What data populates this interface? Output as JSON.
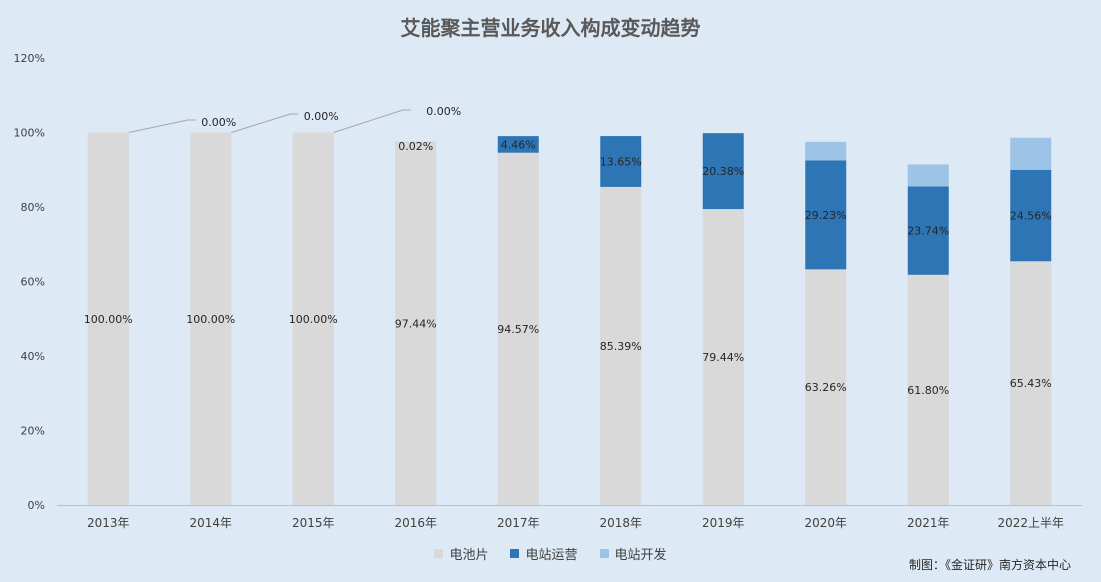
{
  "title": "艾能聚主营业务收入构成变动趋势",
  "source": "制图：《金证研》南方资本中心",
  "colors": {
    "battery": "#d9d9d9",
    "operation": "#2e75b6",
    "development": "#9dc3e6",
    "axis": "#bfbfbf",
    "leader": "#a6a6a6"
  },
  "chart_data": {
    "type": "bar",
    "stacked": true,
    "categories": [
      "2013年",
      "2014年",
      "2015年",
      "2016年",
      "2017年",
      "2018年",
      "2019年",
      "2020年",
      "2021年",
      "2022上半年"
    ],
    "series": [
      {
        "name": "电池片",
        "values": [
          100.0,
          100.0,
          100.0,
          97.44,
          94.57,
          85.39,
          79.44,
          63.26,
          61.8,
          65.43
        ],
        "labels": [
          "100.00%",
          "100.00%",
          "100.00%",
          "97.44%",
          "94.57%",
          "85.39%",
          "79.44%",
          "63.26%",
          "61.80%",
          "65.43%"
        ]
      },
      {
        "name": "电站运营",
        "values": [
          0.0,
          0.0,
          0.0,
          0.02,
          4.46,
          13.65,
          20.38,
          29.23,
          23.74,
          24.56
        ],
        "labels": [
          "",
          "0.00%",
          "0.00%",
          "0.02%",
          "4.46%",
          "13.65%",
          "20.38%",
          "29.23%",
          "23.74%",
          "24.56%"
        ]
      },
      {
        "name": "电站开发",
        "values": [
          0,
          0,
          0,
          0,
          0,
          0,
          0,
          5.0,
          5.9,
          8.6
        ],
        "labels": [
          "",
          "",
          "",
          "",
          "",
          "",
          "",
          "",
          "",
          ""
        ]
      }
    ],
    "ylim": [
      0,
      120
    ],
    "yticks": [
      "0%",
      "20%",
      "40%",
      "60%",
      "80%",
      "100%",
      "120%"
    ],
    "legend_position": "bottom",
    "grid": false
  }
}
